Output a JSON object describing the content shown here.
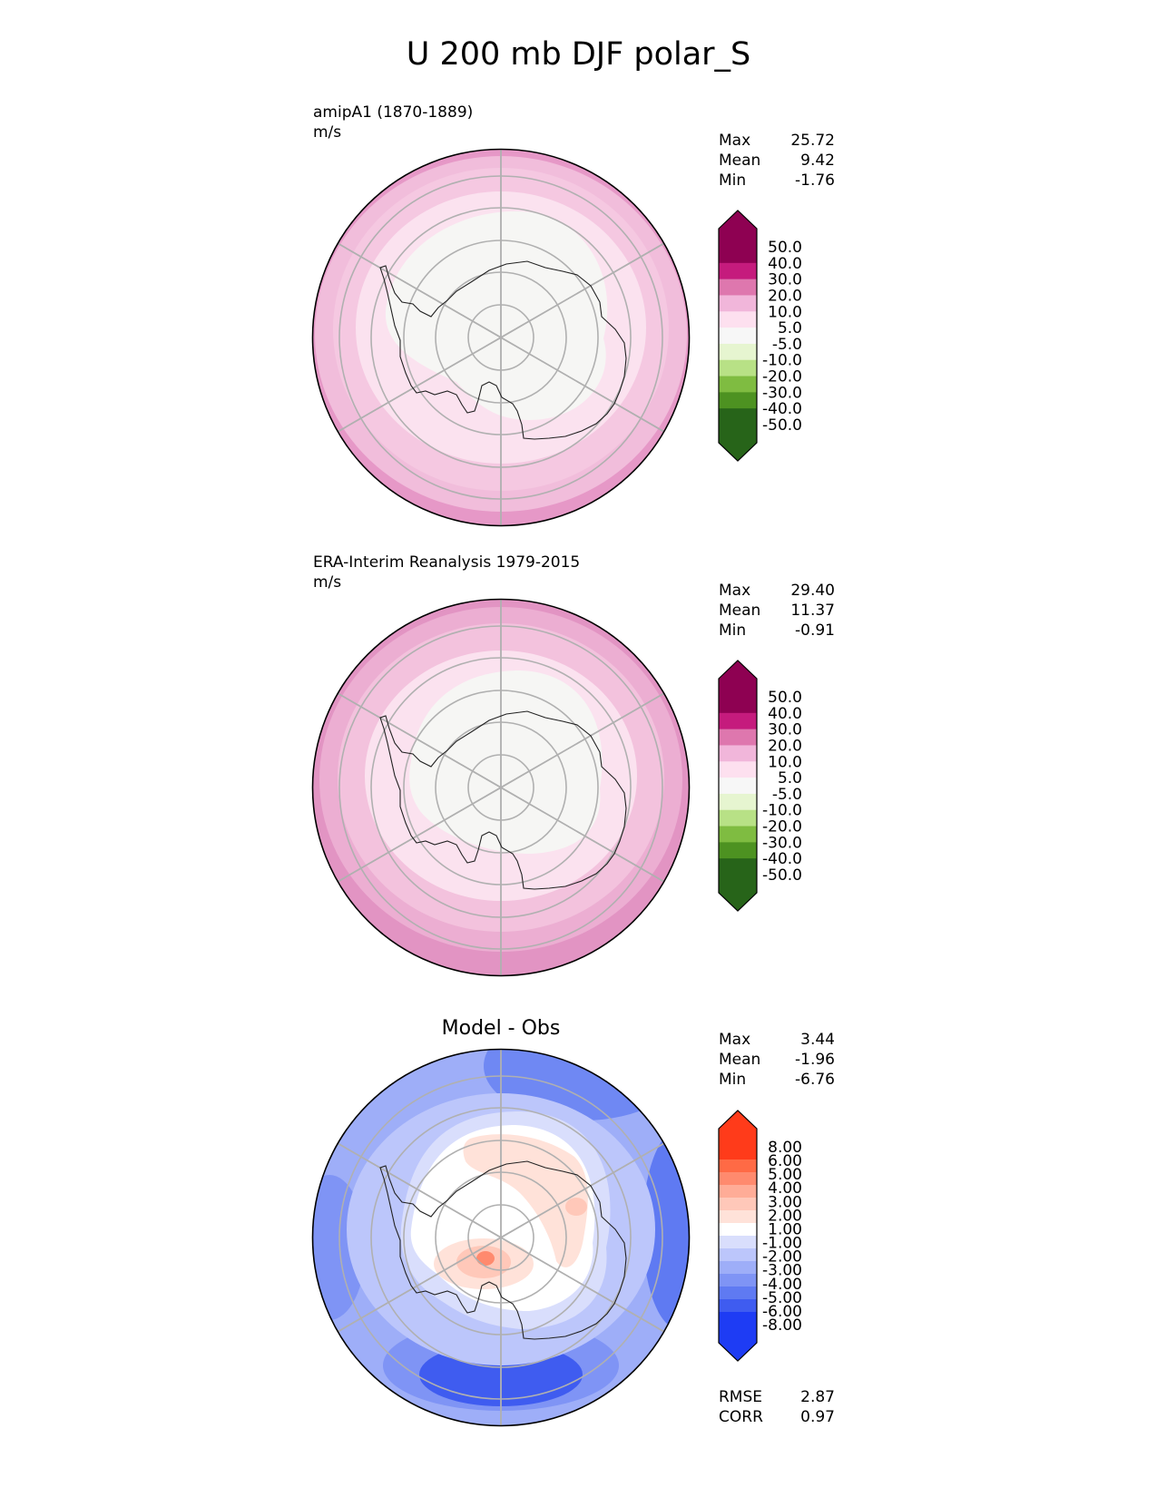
{
  "figure": {
    "title": "U 200 mb DJF polar_S"
  },
  "panels": [
    {
      "id": "test",
      "title_line1": "amipA1 (1870-1889)",
      "title_line2": "m/s",
      "stats": [
        {
          "label": "Max",
          "value": "25.72"
        },
        {
          "label": "Mean",
          "value": "9.42"
        },
        {
          "label": "Min",
          "value": "-1.76"
        }
      ]
    },
    {
      "id": "ref",
      "title_line1": "ERA-Interim Reanalysis 1979-2015",
      "title_line2": "m/s",
      "stats": [
        {
          "label": "Max",
          "value": "29.40"
        },
        {
          "label": "Mean",
          "value": "11.37"
        },
        {
          "label": "Min",
          "value": "-0.91"
        }
      ]
    },
    {
      "id": "diff",
      "title_center": "Model - Obs",
      "stats": [
        {
          "label": "Max",
          "value": "3.44"
        },
        {
          "label": "Mean",
          "value": "-1.96"
        },
        {
          "label": "Min",
          "value": "-6.76"
        }
      ],
      "metrics": [
        {
          "label": "RMSE",
          "value": "2.87"
        },
        {
          "label": "CORR",
          "value": "0.97"
        }
      ]
    }
  ],
  "chart_data": [
    {
      "type": "heatmap",
      "projection": "south-polar-stereographic",
      "title": "amipA1 (1870-1889)",
      "units": "m/s",
      "colorbar_levels": [
        "50.0",
        "40.0",
        "30.0",
        "20.0",
        "10.0",
        "5.0",
        "-5.0",
        "-10.0",
        "-20.0",
        "-30.0",
        "-40.0",
        "-50.0"
      ],
      "colorbar_colors": [
        "#8e0152",
        "#c51b7d",
        "#de77ae",
        "#f1b6da",
        "#fde0ef",
        "#f7f7f7",
        "#e6f5d0",
        "#b8e186",
        "#7fbc41",
        "#4d9221",
        "#276419"
      ],
      "colorbar_colors_top_ext": "#8e0152",
      "colorbar_colors_bottom_ext": "#276419",
      "field_rings": [
        {
          "range": "25-30",
          "color": "#e698c7"
        },
        {
          "range": "20-25",
          "color": "#f1bddb"
        },
        {
          "range": "10-20",
          "color": "#f5c8e1"
        },
        {
          "range": "5-10",
          "color": "#fbe2ef"
        },
        {
          "range": "-5-5",
          "color": "#f6f6f4"
        }
      ],
      "max": 25.72,
      "mean": 9.42,
      "min": -1.76
    },
    {
      "type": "heatmap",
      "projection": "south-polar-stereographic",
      "title": "ERA-Interim Reanalysis 1979-2015",
      "units": "m/s",
      "colorbar_levels": [
        "50.0",
        "40.0",
        "30.0",
        "20.0",
        "10.0",
        "5.0",
        "-5.0",
        "-10.0",
        "-20.0",
        "-30.0",
        "-40.0",
        "-50.0"
      ],
      "colorbar_colors": [
        "#8e0152",
        "#c51b7d",
        "#de77ae",
        "#f1b6da",
        "#fde0ef",
        "#f7f7f7",
        "#e6f5d0",
        "#b8e186",
        "#7fbc41",
        "#4d9221",
        "#276419"
      ],
      "field_rings": [
        {
          "range": "25-30",
          "color": "#e294c3"
        },
        {
          "range": "20-25",
          "color": "#ecaed2"
        },
        {
          "range": "10-20",
          "color": "#f3c2dd"
        },
        {
          "range": "5-10",
          "color": "#fbe2ef"
        },
        {
          "range": "-5-5",
          "color": "#f6f6f4"
        }
      ],
      "max": 29.4,
      "mean": 11.37,
      "min": -0.91
    },
    {
      "type": "heatmap",
      "projection": "south-polar-stereographic",
      "title": "Model - Obs",
      "colorbar_levels": [
        "8.00",
        "6.00",
        "5.00",
        "4.00",
        "3.00",
        "2.00",
        "1.00",
        "-1.00",
        "-2.00",
        "-3.00",
        "-4.00",
        "-5.00",
        "-6.00",
        "-8.00"
      ],
      "colorbar_colors": [
        "#ff3b1a",
        "#ff6a45",
        "#ff8a6e",
        "#ffac97",
        "#ffc8b9",
        "#ffe2d9",
        "#ffffff",
        "#d9defc",
        "#bcc6fb",
        "#9eaef8",
        "#7f94f5",
        "#5f7af2",
        "#3f5cf0",
        "#1e3cf4"
      ],
      "max": 3.44,
      "mean": -1.96,
      "min": -6.76,
      "rmse": 2.87,
      "corr": 0.97
    }
  ]
}
